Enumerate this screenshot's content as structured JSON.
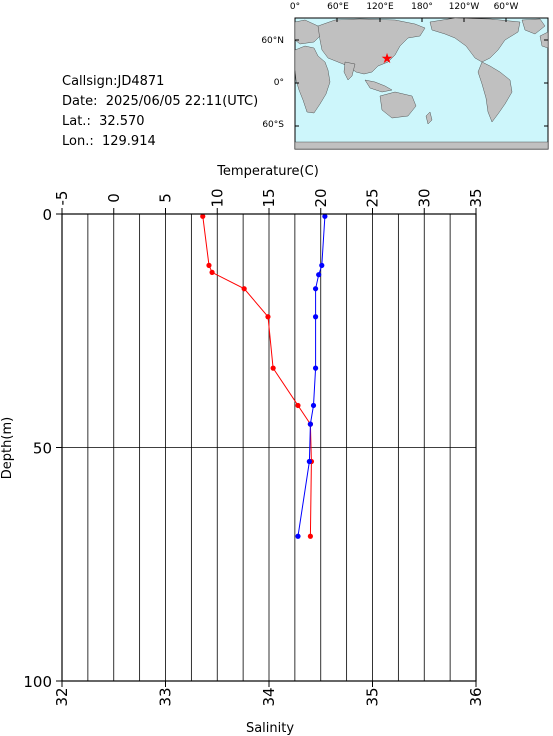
{
  "station": {
    "callsign": "Callsign:JD4871",
    "date": "Date:  2025/06/05 22:11(UTC)",
    "lat": "Lat.:  32.570",
    "lon": "Lon.:  129.914"
  },
  "map": {
    "lon_labels": [
      "0°",
      "60°E",
      "120°E",
      "180°",
      "120°W",
      "60°W"
    ],
    "lat_labels": [
      "60°N",
      "0°",
      "60°S"
    ],
    "ocean_color": "#cdf6fb",
    "land_color": "#c0c0c0",
    "marker_color": "#ff0000"
  },
  "chart_data": {
    "type": "line",
    "xlabel_top": "Temperature(C)",
    "xlabel_bottom": "Salinity",
    "ylabel": "Depth(m)",
    "temperature_axis": {
      "min": -5,
      "max": 35,
      "ticks": [
        "-5",
        "0",
        "5",
        "10",
        "15",
        "20",
        "25",
        "30",
        "35"
      ]
    },
    "salinity_axis": {
      "min": 32,
      "max": 36,
      "ticks": [
        "32",
        "33",
        "34",
        "35",
        "36"
      ]
    },
    "depth_axis": {
      "min": 0,
      "max": 100,
      "inverted": true,
      "ticks": [
        "0",
        "50",
        "100"
      ]
    },
    "grid": true,
    "series": [
      {
        "name": "Temperature",
        "color": "#ff0000",
        "axis": "temperature",
        "points": [
          {
            "x": 8.6,
            "depth": 0.5
          },
          {
            "x": 9.2,
            "depth": 11
          },
          {
            "x": 9.5,
            "depth": 12.5
          },
          {
            "x": 12.6,
            "depth": 16
          },
          {
            "x": 14.9,
            "depth": 22
          },
          {
            "x": 15.4,
            "depth": 33
          },
          {
            "x": 17.8,
            "depth": 41
          },
          {
            "x": 19.0,
            "depth": 45
          },
          {
            "x": 19.1,
            "depth": 53
          },
          {
            "x": 19.0,
            "depth": 69
          }
        ]
      },
      {
        "name": "Salinity",
        "color": "#0000ff",
        "axis": "salinity",
        "points": [
          {
            "x": 34.54,
            "depth": 0.5
          },
          {
            "x": 34.51,
            "depth": 11
          },
          {
            "x": 34.48,
            "depth": 13
          },
          {
            "x": 34.45,
            "depth": 16
          },
          {
            "x": 34.45,
            "depth": 22
          },
          {
            "x": 34.45,
            "depth": 33
          },
          {
            "x": 34.43,
            "depth": 41
          },
          {
            "x": 34.4,
            "depth": 45
          },
          {
            "x": 34.39,
            "depth": 53
          },
          {
            "x": 34.28,
            "depth": 69
          }
        ]
      }
    ]
  }
}
